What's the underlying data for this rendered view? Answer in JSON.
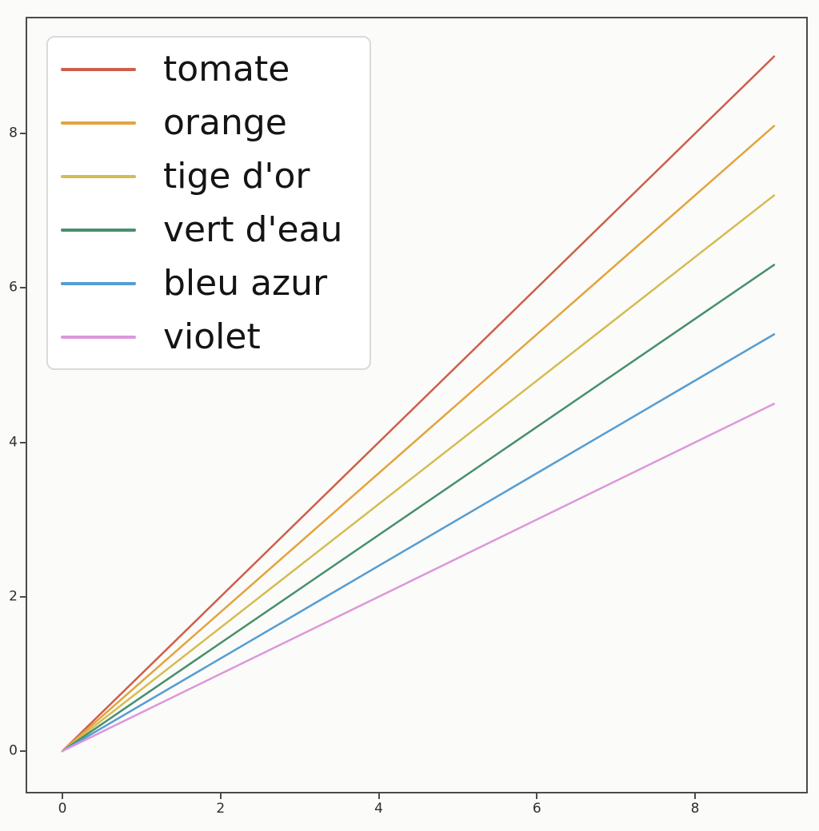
{
  "chart_data": {
    "type": "line",
    "title": "",
    "xlabel": "",
    "ylabel": "",
    "x_range": [
      0,
      9
    ],
    "y_range": [
      0,
      9
    ],
    "x_ticks": [
      "0",
      "2",
      "4",
      "6",
      "8"
    ],
    "x_tick_values": [
      0,
      2,
      4,
      6,
      8
    ],
    "y_ticks": [
      "0",
      "2",
      "4",
      "6",
      "8"
    ],
    "y_tick_values": [
      0,
      2,
      4,
      6,
      8
    ],
    "grid": false,
    "legend_position": "upper left",
    "series": [
      {
        "name": "tomate",
        "color": "#cd5f4c",
        "x": [
          0,
          9
        ],
        "y": [
          0,
          9.0
        ]
      },
      {
        "name": "orange",
        "color": "#e3a33d",
        "x": [
          0,
          9
        ],
        "y": [
          0,
          8.1
        ]
      },
      {
        "name": "tige d'or",
        "color": "#d5bc52",
        "x": [
          0,
          9
        ],
        "y": [
          0,
          7.2
        ]
      },
      {
        "name": "vert d'eau",
        "color": "#47906c",
        "x": [
          0,
          9
        ],
        "y": [
          0,
          6.3
        ]
      },
      {
        "name": "bleu azur",
        "color": "#559dd2",
        "x": [
          0,
          9
        ],
        "y": [
          0,
          5.4
        ]
      },
      {
        "name": "violet",
        "color": "#dd97dc",
        "x": [
          0,
          9
        ],
        "y": [
          0,
          4.5
        ]
      }
    ],
    "colors": {
      "spine": "#4b4b4b",
      "tick_label": "#2e2e2e",
      "legend_border": "#dadada",
      "background": "#fbfbf9",
      "legend_text": "#141414"
    }
  }
}
